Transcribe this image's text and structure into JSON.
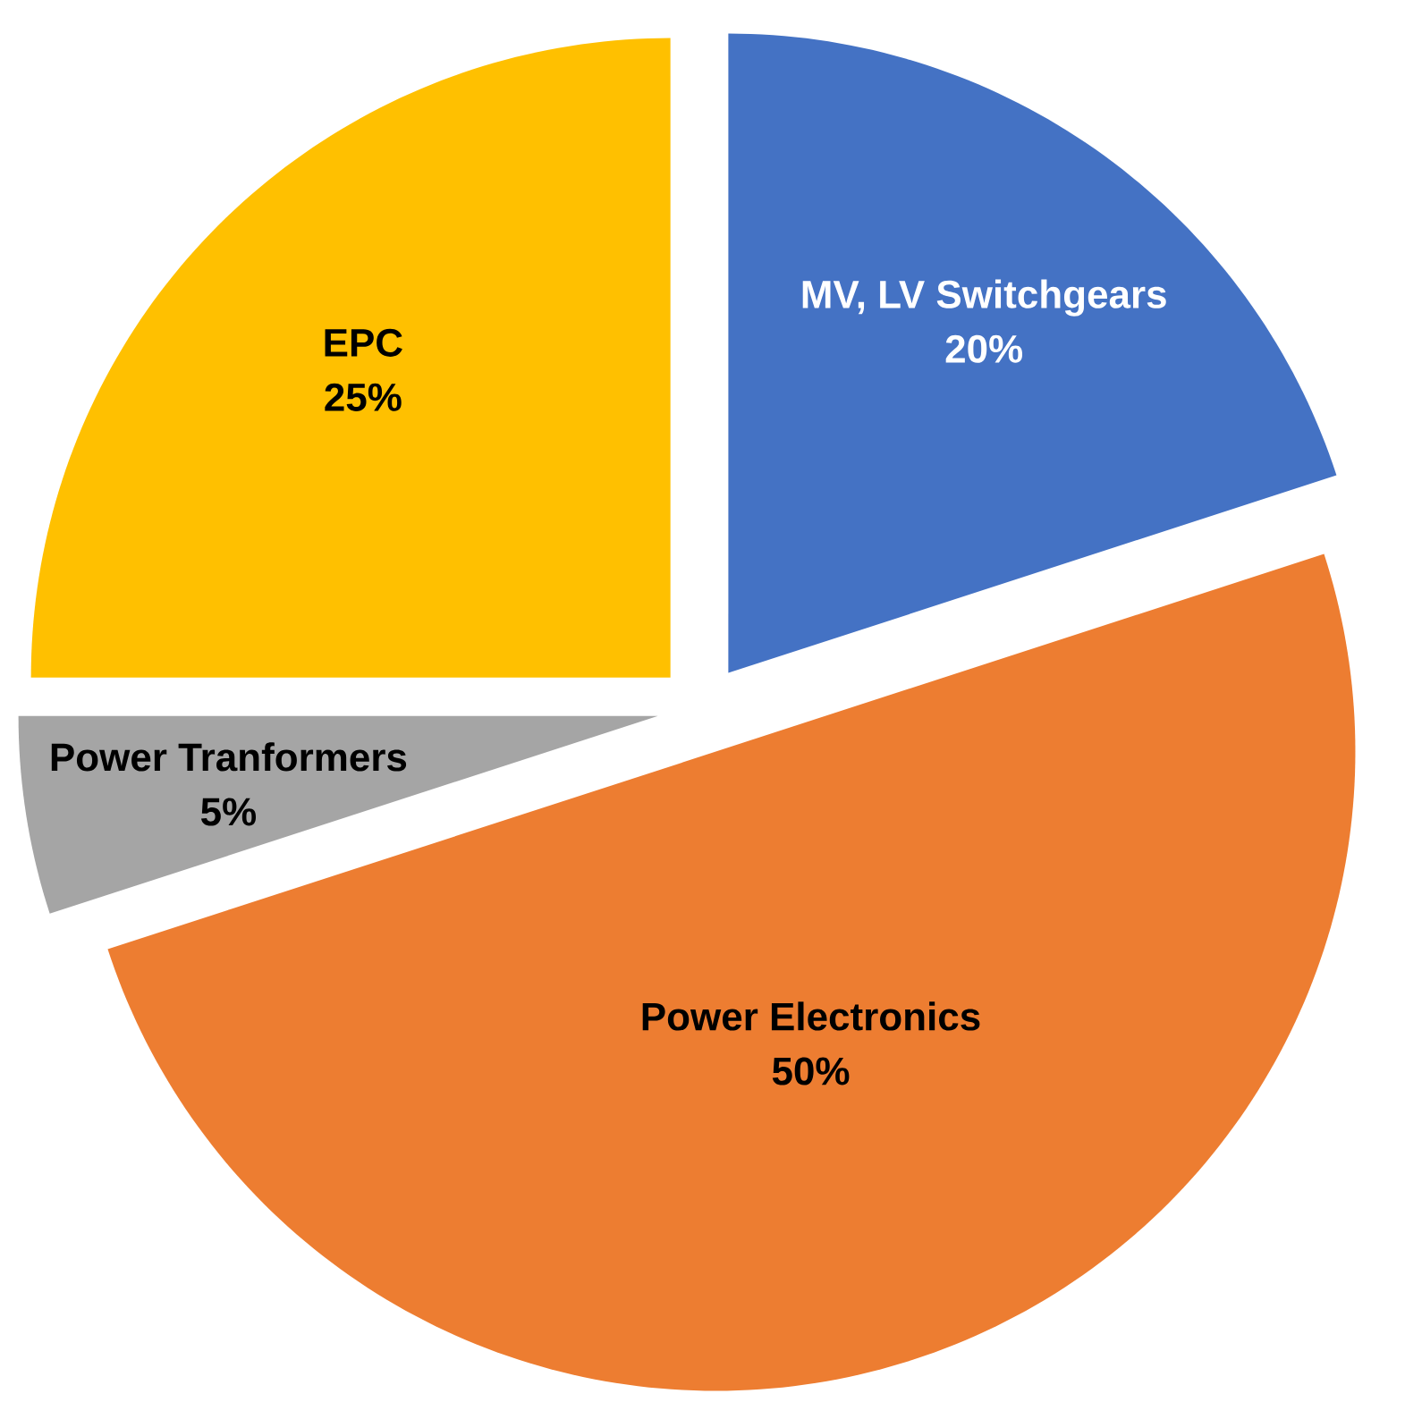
{
  "chart_data": {
    "type": "pie",
    "categories": [
      "MV, LV Switchgears",
      "Power Electronics",
      "Power Tranformers",
      "EPC"
    ],
    "values": [
      20,
      50,
      5,
      25
    ],
    "colors": [
      "#4472c4",
      "#ed7d31",
      "#a5a5a5",
      "#ffc000"
    ],
    "value_labels": [
      "20%",
      "50%",
      "5%",
      "25%"
    ]
  }
}
